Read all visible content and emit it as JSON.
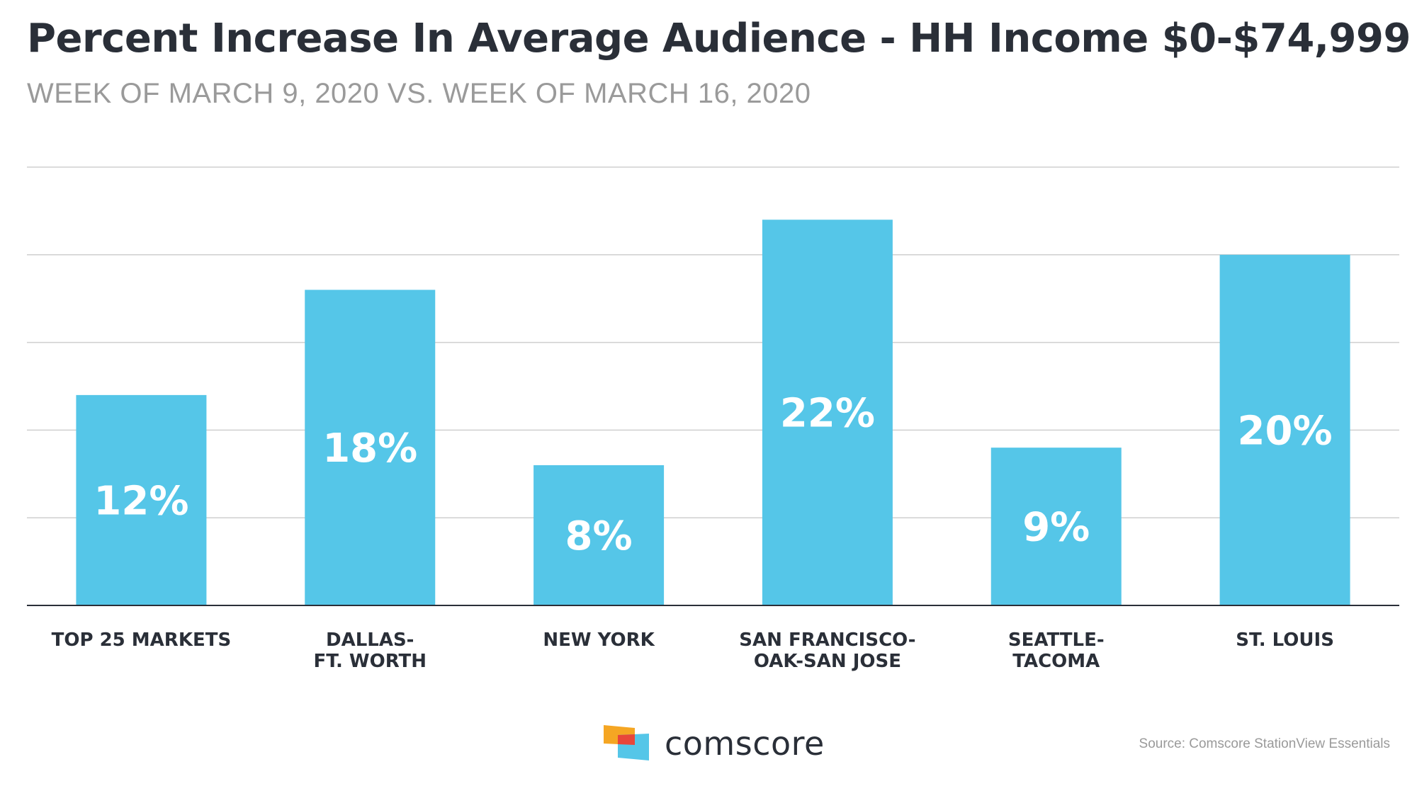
{
  "header": {
    "title": "Percent Increase In Average Audience - HH Income $0-$74,999",
    "subtitle": "WEEK OF MARCH 9, 2020 VS. WEEK OF MARCH 16, 2020"
  },
  "chart_data": {
    "type": "bar",
    "title": "Percent Increase In Average Audience - HH Income $0-$74,999",
    "subtitle": "WEEK OF MARCH 9, 2020 VS. WEEK OF MARCH 16, 2020",
    "categories": [
      [
        "TOP 25 MARKETS"
      ],
      [
        "DALLAS-",
        "FT. WORTH"
      ],
      [
        "NEW YORK"
      ],
      [
        "SAN FRANCISCO-",
        "OAK-SAN JOSE"
      ],
      [
        "SEATTLE-",
        "TACOMA"
      ],
      [
        "ST. LOUIS"
      ]
    ],
    "values": [
      12,
      18,
      8,
      22,
      9,
      20
    ],
    "data_labels": [
      "12%",
      "18%",
      "8%",
      "22%",
      "9%",
      "20%"
    ],
    "unit": "%",
    "ylim": [
      0,
      25
    ],
    "grid": true,
    "bar_color": "#55c6e8",
    "label_color": "#ffffff"
  },
  "footer": {
    "brand": "comscore",
    "source": "Source: Comscore StationView Essentials"
  },
  "colors": {
    "title": "#2a2f38",
    "subtitle": "#9a9a9a",
    "gridline": "#cfcfcf",
    "axis": "#2a2f38",
    "logo_orange": "#f5a623",
    "logo_red": "#e8463a",
    "logo_blue": "#55c6e8"
  }
}
